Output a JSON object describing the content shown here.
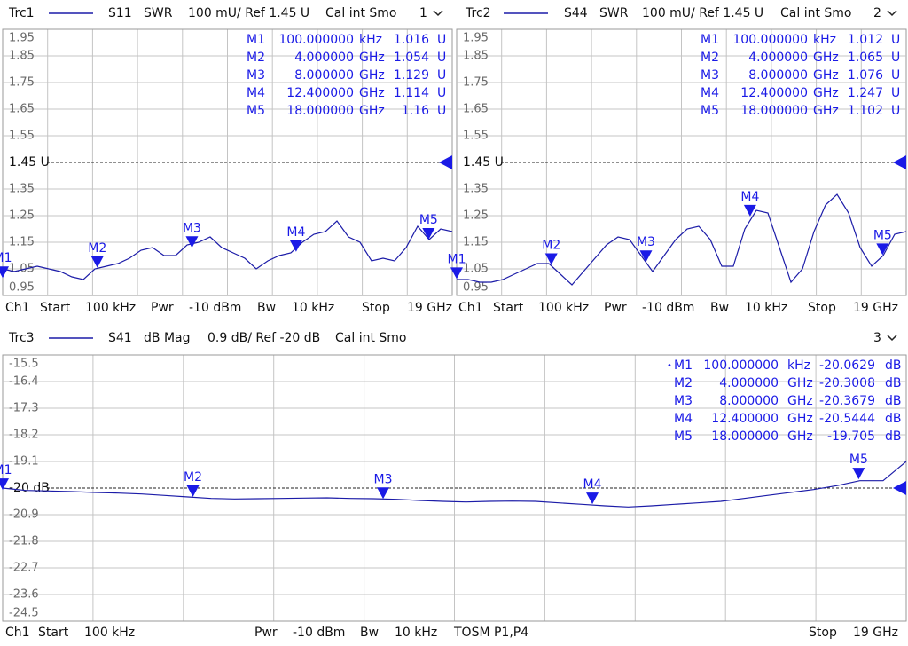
{
  "chart_data": [
    {
      "type": "line",
      "header": [
        "Trc1",
        "S11",
        "SWR",
        "100 mU/ Ref 1.45 U",
        "Cal int Smo",
        "1"
      ],
      "footer": [
        "Ch1",
        "Start",
        "100 kHz",
        "Pwr",
        "-10 dBm",
        "Bw",
        "10 kHz",
        "Stop",
        "19 GHz"
      ],
      "ylim": [
        0.95,
        1.95
      ],
      "yticks": [
        1.95,
        1.85,
        1.75,
        1.65,
        1.55,
        {
          "value": 1.45,
          "label": "1.45 U"
        },
        1.35,
        1.25,
        1.15,
        1.05,
        0.95
      ],
      "xlim": [
        0.0001,
        19
      ],
      "color": "#1c1ca8",
      "values": [
        1.05,
        1.04,
        1.05,
        1.06,
        1.05,
        1.04,
        1.02,
        1.01,
        1.05,
        1.06,
        1.07,
        1.09,
        1.12,
        1.13,
        1.1,
        1.1,
        1.14,
        1.15,
        1.17,
        1.13,
        1.11,
        1.09,
        1.05,
        1.08,
        1.1,
        1.11,
        1.15,
        1.18,
        1.19,
        1.23,
        1.17,
        1.15,
        1.08,
        1.09,
        1.08,
        1.13,
        1.21,
        1.16,
        1.2,
        1.19
      ],
      "markers": [
        {
          "name": "M1",
          "freq": {
            "value": 0.0001,
            "label": "100.000000"
          },
          "unit": "kHz",
          "value": 1.016,
          "vunit": "U"
        },
        {
          "name": "M2",
          "freq": {
            "value": 4,
            "label": "4.000000"
          },
          "unit": "GHz",
          "value": 1.054,
          "vunit": "U"
        },
        {
          "name": "M3",
          "freq": {
            "value": 8,
            "label": "8.000000"
          },
          "unit": "GHz",
          "value": 1.129,
          "vunit": "U"
        },
        {
          "name": "M4",
          "freq": {
            "value": 12.4,
            "label": "12.400000"
          },
          "unit": "GHz",
          "value": 1.114,
          "vunit": "U"
        },
        {
          "name": "M5",
          "freq": {
            "value": 18,
            "label": "18.000000"
          },
          "unit": "GHz",
          "value": 1.16,
          "vunit": "U"
        }
      ]
    },
    {
      "type": "line",
      "header": [
        "Trc2",
        "S44",
        "SWR",
        "100 mU/ Ref 1.45 U",
        "Cal int Smo",
        "2"
      ],
      "footer": [
        "Ch1",
        "Start",
        "100 kHz",
        "Pwr",
        "-10 dBm",
        "Bw",
        "10 kHz",
        "Stop",
        "19 GHz"
      ],
      "ylim": [
        0.95,
        1.95
      ],
      "yticks": [
        1.95,
        1.85,
        1.75,
        1.65,
        1.55,
        {
          "value": 1.45,
          "label": "1.45 U"
        },
        1.35,
        1.25,
        1.15,
        1.05,
        0.95
      ],
      "xlim": [
        0.0001,
        19
      ],
      "color": "#1c1ca8",
      "values": [
        1.01,
        1.01,
        1.0,
        1.0,
        1.01,
        1.03,
        1.05,
        1.07,
        1.07,
        1.03,
        0.99,
        1.04,
        1.09,
        1.14,
        1.17,
        1.16,
        1.1,
        1.04,
        1.1,
        1.16,
        1.2,
        1.21,
        1.16,
        1.06,
        1.06,
        1.2,
        1.27,
        1.26,
        1.13,
        1.0,
        1.05,
        1.19,
        1.29,
        1.33,
        1.26,
        1.13,
        1.06,
        1.1,
        1.18,
        1.19
      ],
      "markers": [
        {
          "name": "M1",
          "freq": {
            "value": 0.0001,
            "label": "100.000000"
          },
          "unit": "kHz",
          "value": 1.012,
          "vunit": "U"
        },
        {
          "name": "M2",
          "freq": {
            "value": 4,
            "label": "4.000000"
          },
          "unit": "GHz",
          "value": 1.065,
          "vunit": "U"
        },
        {
          "name": "M3",
          "freq": {
            "value": 8,
            "label": "8.000000"
          },
          "unit": "GHz",
          "value": 1.076,
          "vunit": "U"
        },
        {
          "name": "M4",
          "freq": {
            "value": 12.4,
            "label": "12.400000"
          },
          "unit": "GHz",
          "value": 1.247,
          "vunit": "U"
        },
        {
          "name": "M5",
          "freq": {
            "value": 18,
            "label": "18.000000"
          },
          "unit": "GHz",
          "value": 1.102,
          "vunit": "U"
        }
      ]
    },
    {
      "type": "line",
      "header": [
        "Trc3",
        "S41",
        "dB Mag",
        "0.9 dB/ Ref -20 dB",
        "Cal int Smo",
        "3"
      ],
      "footer": [
        "Ch1",
        "Start",
        "100 kHz",
        "Pwr",
        "-10 dBm",
        "Bw",
        "10 kHz",
        "TOSM P1,P4",
        "Stop",
        "19 GHz"
      ],
      "ylim": [
        -24.5,
        -15.5
      ],
      "yticks": [
        -15.5,
        -16.4,
        -17.3,
        -18.2,
        -19.1,
        {
          "value": -20,
          "label": "-20 dB"
        },
        -20.9,
        -21.8,
        -22.7,
        -23.6,
        -24.5
      ],
      "xlim": [
        0.0001,
        19
      ],
      "color": "#1c1ca8",
      "values": [
        -20.0,
        -20.08,
        -20.1,
        -20.12,
        -20.15,
        -20.17,
        -20.2,
        -20.25,
        -20.3,
        -20.35,
        -20.37,
        -20.36,
        -20.35,
        -20.34,
        -20.33,
        -20.35,
        -20.36,
        -20.38,
        -20.42,
        -20.45,
        -20.47,
        -20.45,
        -20.44,
        -20.45,
        -20.5,
        -20.55,
        -20.6,
        -20.64,
        -20.6,
        -20.55,
        -20.5,
        -20.45,
        -20.35,
        -20.25,
        -20.15,
        -20.05,
        -19.92,
        -19.75,
        -19.75,
        -19.1
      ],
      "markers": [
        {
          "name": "M1",
          "freq": {
            "value": 0.0001,
            "label": "100.000000"
          },
          "unit": "kHz",
          "value": -20.0629,
          "vunit": "dB"
        },
        {
          "name": "M2",
          "freq": {
            "value": 4,
            "label": "4.000000"
          },
          "unit": "GHz",
          "value": -20.3008,
          "vunit": "dB"
        },
        {
          "name": "M3",
          "freq": {
            "value": 8,
            "label": "8.000000"
          },
          "unit": "GHz",
          "value": -20.3679,
          "vunit": "dB"
        },
        {
          "name": "M4",
          "freq": {
            "value": 12.4,
            "label": "12.400000"
          },
          "unit": "GHz",
          "value": -20.5444,
          "vunit": "dB"
        },
        {
          "name": "M5",
          "freq": {
            "value": 18,
            "label": "18.000000"
          },
          "unit": "GHz",
          "value": -19.705,
          "vunit": "dB"
        }
      ]
    }
  ]
}
